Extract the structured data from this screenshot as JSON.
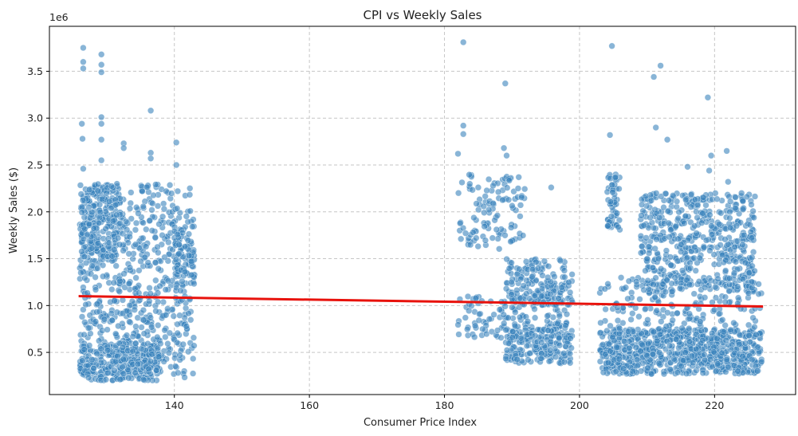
{
  "chart_data": {
    "type": "scatter",
    "title": "CPI vs Weekly Sales",
    "xlabel": "Consumer Price Index",
    "ylabel": "Weekly Sales ($)",
    "y_offset_text": "1e6",
    "xlim": [
      121.5,
      232
    ],
    "ylim": [
      0.05,
      3.98
    ],
    "x_ticks": [
      140,
      160,
      180,
      200,
      220
    ],
    "y_ticks": [
      0.5,
      1.0,
      1.5,
      2.0,
      2.5,
      3.0,
      3.5
    ],
    "x_tick_labels": [
      "140",
      "160",
      "180",
      "200",
      "220"
    ],
    "y_tick_labels": [
      "0.5",
      "1.0",
      "1.5",
      "2.0",
      "2.5",
      "3.0",
      "3.5"
    ],
    "grid": true,
    "grid_style": "dashed",
    "point_color": "#3b84bd",
    "trend_color": "#e8120c",
    "trend_line": {
      "x": [
        126,
        227
      ],
      "y": [
        1.1,
        0.99
      ]
    },
    "clusters": [
      {
        "x_range": [
          126,
          143
        ],
        "y_range": [
          0.22,
          2.3
        ],
        "count": 700
      },
      {
        "x_range": [
          126,
          138
        ],
        "y_range": [
          0.2,
          0.6
        ],
        "count": 240
      },
      {
        "x_range": [
          126,
          132
        ],
        "y_range": [
          1.5,
          2.3
        ],
        "count": 160
      },
      {
        "x_range": [
          140,
          143
        ],
        "y_range": [
          1.3,
          1.8
        ],
        "count": 60
      },
      {
        "x_range": [
          182,
          192
        ],
        "y_range": [
          1.6,
          2.4
        ],
        "count": 110
      },
      {
        "x_range": [
          182,
          199
        ],
        "y_range": [
          0.65,
          1.1
        ],
        "count": 170
      },
      {
        "x_range": [
          189,
          199
        ],
        "y_range": [
          0.38,
          0.75
        ],
        "count": 170
      },
      {
        "x_range": [
          189,
          199
        ],
        "y_range": [
          1.0,
          1.5
        ],
        "count": 150
      },
      {
        "x_range": [
          203,
          227
        ],
        "y_range": [
          0.27,
          0.75
        ],
        "count": 750
      },
      {
        "x_range": [
          209,
          226
        ],
        "y_range": [
          1.15,
          2.2
        ],
        "count": 520
      },
      {
        "x_range": [
          203,
          227
        ],
        "y_range": [
          0.75,
          1.3
        ],
        "count": 180
      },
      {
        "x_range": [
          204,
          206
        ],
        "y_range": [
          1.8,
          2.4
        ],
        "count": 60
      }
    ],
    "outliers": [
      {
        "x": 126.5,
        "y": 3.75
      },
      {
        "x": 126.5,
        "y": 3.6
      },
      {
        "x": 126.5,
        "y": 3.53
      },
      {
        "x": 126.3,
        "y": 2.94
      },
      {
        "x": 126.4,
        "y": 2.78
      },
      {
        "x": 126.5,
        "y": 2.46
      },
      {
        "x": 129.2,
        "y": 3.68
      },
      {
        "x": 129.2,
        "y": 3.57
      },
      {
        "x": 129.2,
        "y": 3.49
      },
      {
        "x": 129.2,
        "y": 3.01
      },
      {
        "x": 129.2,
        "y": 2.94
      },
      {
        "x": 129.2,
        "y": 2.77
      },
      {
        "x": 129.2,
        "y": 2.55
      },
      {
        "x": 132.5,
        "y": 2.73
      },
      {
        "x": 132.5,
        "y": 2.68
      },
      {
        "x": 136.5,
        "y": 3.08
      },
      {
        "x": 136.5,
        "y": 2.63
      },
      {
        "x": 136.5,
        "y": 2.57
      },
      {
        "x": 140.3,
        "y": 2.74
      },
      {
        "x": 140.3,
        "y": 2.5
      },
      {
        "x": 140.5,
        "y": 2.22
      },
      {
        "x": 182.0,
        "y": 2.62
      },
      {
        "x": 182.8,
        "y": 3.81
      },
      {
        "x": 182.8,
        "y": 2.92
      },
      {
        "x": 182.8,
        "y": 2.83
      },
      {
        "x": 185.0,
        "y": 2.26
      },
      {
        "x": 188.8,
        "y": 2.68
      },
      {
        "x": 189.0,
        "y": 3.37
      },
      {
        "x": 189.2,
        "y": 2.6
      },
      {
        "x": 191.0,
        "y": 2.37
      },
      {
        "x": 195.8,
        "y": 2.26
      },
      {
        "x": 204.8,
        "y": 3.77
      },
      {
        "x": 204.5,
        "y": 2.82
      },
      {
        "x": 211.0,
        "y": 3.44
      },
      {
        "x": 212.0,
        "y": 3.56
      },
      {
        "x": 211.3,
        "y": 2.9
      },
      {
        "x": 213.0,
        "y": 2.77
      },
      {
        "x": 219.0,
        "y": 3.22
      },
      {
        "x": 219.5,
        "y": 2.6
      },
      {
        "x": 221.8,
        "y": 2.65
      },
      {
        "x": 216.0,
        "y": 2.48
      },
      {
        "x": 222.0,
        "y": 2.32
      },
      {
        "x": 224.0,
        "y": 2.2
      },
      {
        "x": 219.2,
        "y": 2.44
      }
    ]
  }
}
